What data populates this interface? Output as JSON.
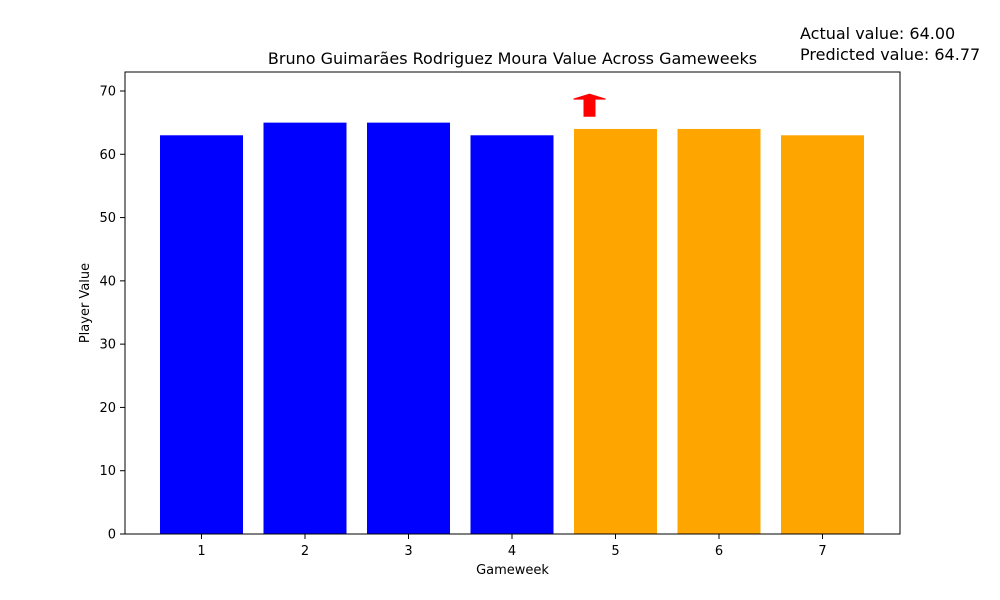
{
  "chart_data": {
    "type": "bar",
    "title": "Bruno Guimarães Rodriguez Moura Value Across Gameweeks",
    "xlabel": "Gameweek",
    "ylabel": "Player Value",
    "categories": [
      "1",
      "2",
      "3",
      "4",
      "5",
      "6",
      "7"
    ],
    "values": [
      63,
      65,
      65,
      63,
      64,
      64,
      63
    ],
    "bar_colors": [
      "#0000ff",
      "#0000ff",
      "#0000ff",
      "#0000ff",
      "#ffa500",
      "#ffa500",
      "#ffa500"
    ],
    "ylim": [
      0,
      73
    ],
    "yticks": [
      0,
      10,
      20,
      30,
      40,
      50,
      60,
      70
    ],
    "grid": false,
    "annotations": {
      "actual_text": "Actual value: 64.00",
      "predicted_text": "Predicted value: 64.77",
      "arrow": {
        "direction": "up",
        "gameweek": "5",
        "color": "#ff0000",
        "from_value": 66,
        "to_value": 69.5
      }
    }
  }
}
